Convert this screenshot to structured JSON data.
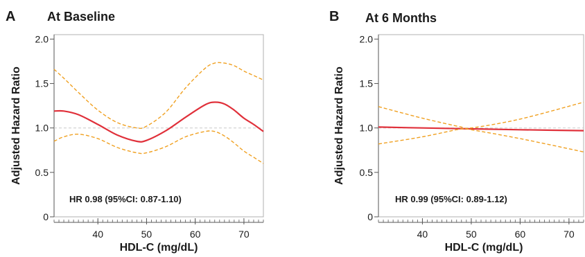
{
  "colors": {
    "main_curve": "#e0303a",
    "ci_curve": "#f0a020",
    "reference_line": "#c8c8c8",
    "axis": "#555555",
    "frame": "#b0b0b0"
  },
  "chart_data": [
    {
      "type": "line",
      "panel_letter": "A",
      "title": "At Baseline",
      "xlabel": "HDL-C (mg/dL)",
      "ylabel": "Adjusted Hazard Ratio",
      "xlim": [
        31,
        74
      ],
      "ylim": [
        0,
        2.05
      ],
      "x_ticks": [
        40,
        50,
        60,
        70
      ],
      "x_tick_labels": [
        "40",
        "50",
        "60",
        "70"
      ],
      "x_minor_step": 1,
      "y_ticks": [
        0,
        0.5,
        1.0,
        1.5,
        2.0
      ],
      "y_tick_labels": [
        "0",
        "0.5",
        "1.0",
        "1.5",
        "2.0"
      ],
      "reference_y": 1.0,
      "grid": false,
      "annotation": "HR 0.98 (95%CI: 0.87-1.10)",
      "series": [
        {
          "role": "estimate",
          "style": "solid",
          "x": [
            31,
            33,
            36,
            40,
            44,
            48,
            50,
            54,
            58,
            62,
            64,
            66,
            68,
            70,
            72,
            74
          ],
          "y": [
            1.19,
            1.19,
            1.15,
            1.04,
            0.92,
            0.85,
            0.86,
            0.97,
            1.12,
            1.26,
            1.29,
            1.27,
            1.2,
            1.11,
            1.04,
            0.96
          ]
        },
        {
          "role": "ci_upper",
          "style": "dashed",
          "x": [
            31,
            33,
            36,
            40,
            44,
            48,
            50,
            54,
            58,
            62,
            64,
            66,
            68,
            70,
            72,
            74
          ],
          "y": [
            1.66,
            1.56,
            1.4,
            1.2,
            1.06,
            1.0,
            1.02,
            1.18,
            1.45,
            1.67,
            1.73,
            1.73,
            1.7,
            1.64,
            1.59,
            1.54
          ]
        },
        {
          "role": "ci_lower",
          "style": "dashed",
          "x": [
            31,
            33,
            36,
            40,
            44,
            48,
            50,
            54,
            58,
            62,
            64,
            66,
            68,
            70,
            72,
            74
          ],
          "y": [
            0.85,
            0.9,
            0.93,
            0.88,
            0.78,
            0.72,
            0.72,
            0.79,
            0.9,
            0.96,
            0.96,
            0.91,
            0.83,
            0.74,
            0.67,
            0.6
          ]
        }
      ]
    },
    {
      "type": "line",
      "panel_letter": "B",
      "title": "At 6 Months",
      "xlabel": "HDL-C (mg/dL)",
      "ylabel": "Adjusted Hazard Ratio",
      "xlim": [
        31,
        73
      ],
      "ylim": [
        0,
        2.05
      ],
      "x_ticks": [
        40,
        50,
        60,
        70
      ],
      "x_tick_labels": [
        "40",
        "50",
        "60",
        "70"
      ],
      "x_minor_step": 1,
      "y_ticks": [
        0,
        0.5,
        1.0,
        1.5,
        2.0
      ],
      "y_tick_labels": [
        "0",
        "0.5",
        "1.0",
        "1.5",
        "2.0"
      ],
      "reference_y": 1.0,
      "grid": false,
      "annotation": "HR 0.99 (95%CI: 0.89-1.12)",
      "series": [
        {
          "role": "estimate",
          "style": "solid",
          "x": [
            31,
            40,
            50,
            60,
            73
          ],
          "y": [
            1.01,
            1.0,
            0.99,
            0.98,
            0.97
          ]
        },
        {
          "role": "ci_upper",
          "style": "dashed",
          "x": [
            31,
            40,
            48,
            50,
            60,
            73
          ],
          "y": [
            1.24,
            1.11,
            1.01,
            1.0,
            1.1,
            1.29
          ]
        },
        {
          "role": "ci_lower",
          "style": "dashed",
          "x": [
            31,
            40,
            48,
            50,
            60,
            73
          ],
          "y": [
            0.82,
            0.9,
            0.99,
            0.98,
            0.88,
            0.73
          ]
        }
      ]
    }
  ]
}
